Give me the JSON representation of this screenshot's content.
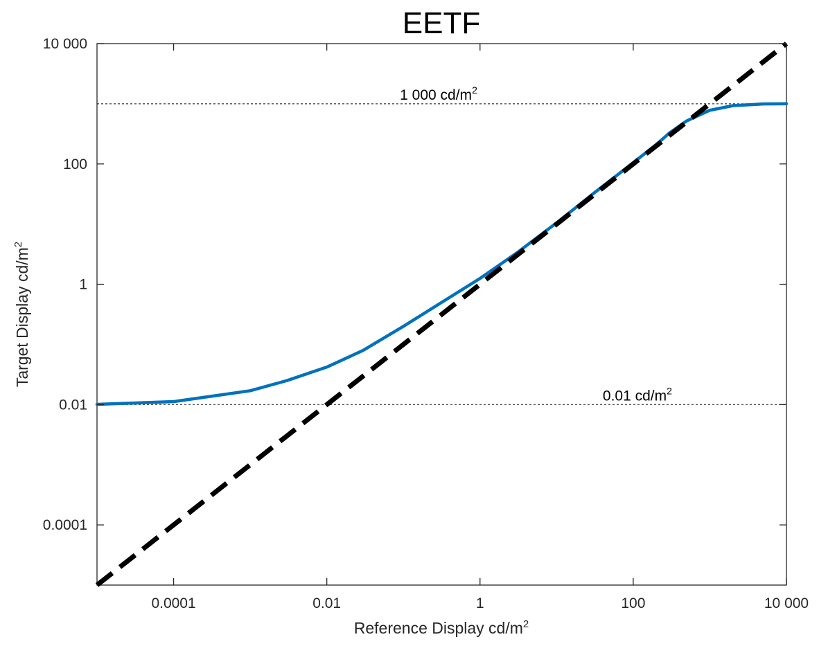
{
  "chart_data": {
    "type": "line",
    "title": "EETF",
    "xlabel": "Reference Display cd/m",
    "xlabel_sup": "2",
    "ylabel": "Target Display cd/m",
    "ylabel_sup": "2",
    "x_scale": "log",
    "y_scale": "log",
    "xlim": [
      1e-05,
      10000
    ],
    "ylim": [
      1e-05,
      10000
    ],
    "x_ticks": [
      {
        "value": 0.0001,
        "label": "0.0001"
      },
      {
        "value": 0.01,
        "label": "0.01"
      },
      {
        "value": 1,
        "label": "1"
      },
      {
        "value": 100,
        "label": "100"
      },
      {
        "value": 10000,
        "label": "10 000"
      }
    ],
    "y_ticks": [
      {
        "value": 0.0001,
        "label": "0.0001"
      },
      {
        "value": 0.01,
        "label": "0.01"
      },
      {
        "value": 1,
        "label": "1"
      },
      {
        "value": 100,
        "label": "100"
      },
      {
        "value": 10000,
        "label": "10 000"
      }
    ],
    "grid": false,
    "reference_lines": [
      {
        "y": 1000,
        "label": "1 000 cd/m",
        "label_sup": "2",
        "label_x": 0.09,
        "style": "dotted",
        "color": "#333333"
      },
      {
        "y": 0.01,
        "label": "0.01   cd/m",
        "label_sup": "2",
        "label_x": 40,
        "style": "dotted",
        "color": "#333333"
      }
    ],
    "series": [
      {
        "style": "dashed",
        "color": "#000000",
        "x": [
          1e-05,
          10000
        ],
        "y": [
          1e-05,
          10000
        ]
      },
      {
        "style": "solid",
        "color": "#0072bd",
        "x": [
          1e-05,
          0.0001,
          0.001,
          0.003,
          0.01,
          0.03,
          0.1,
          0.3,
          1,
          3,
          10,
          30,
          100,
          200,
          300,
          500,
          1000,
          2000,
          5000,
          10000
        ],
        "y": [
          0.0101,
          0.0112,
          0.017,
          0.025,
          0.042,
          0.08,
          0.2,
          0.48,
          1.25,
          3.3,
          10.5,
          32,
          105,
          210,
          330,
          520,
          780,
          930,
          995,
          1000
        ]
      }
    ]
  }
}
